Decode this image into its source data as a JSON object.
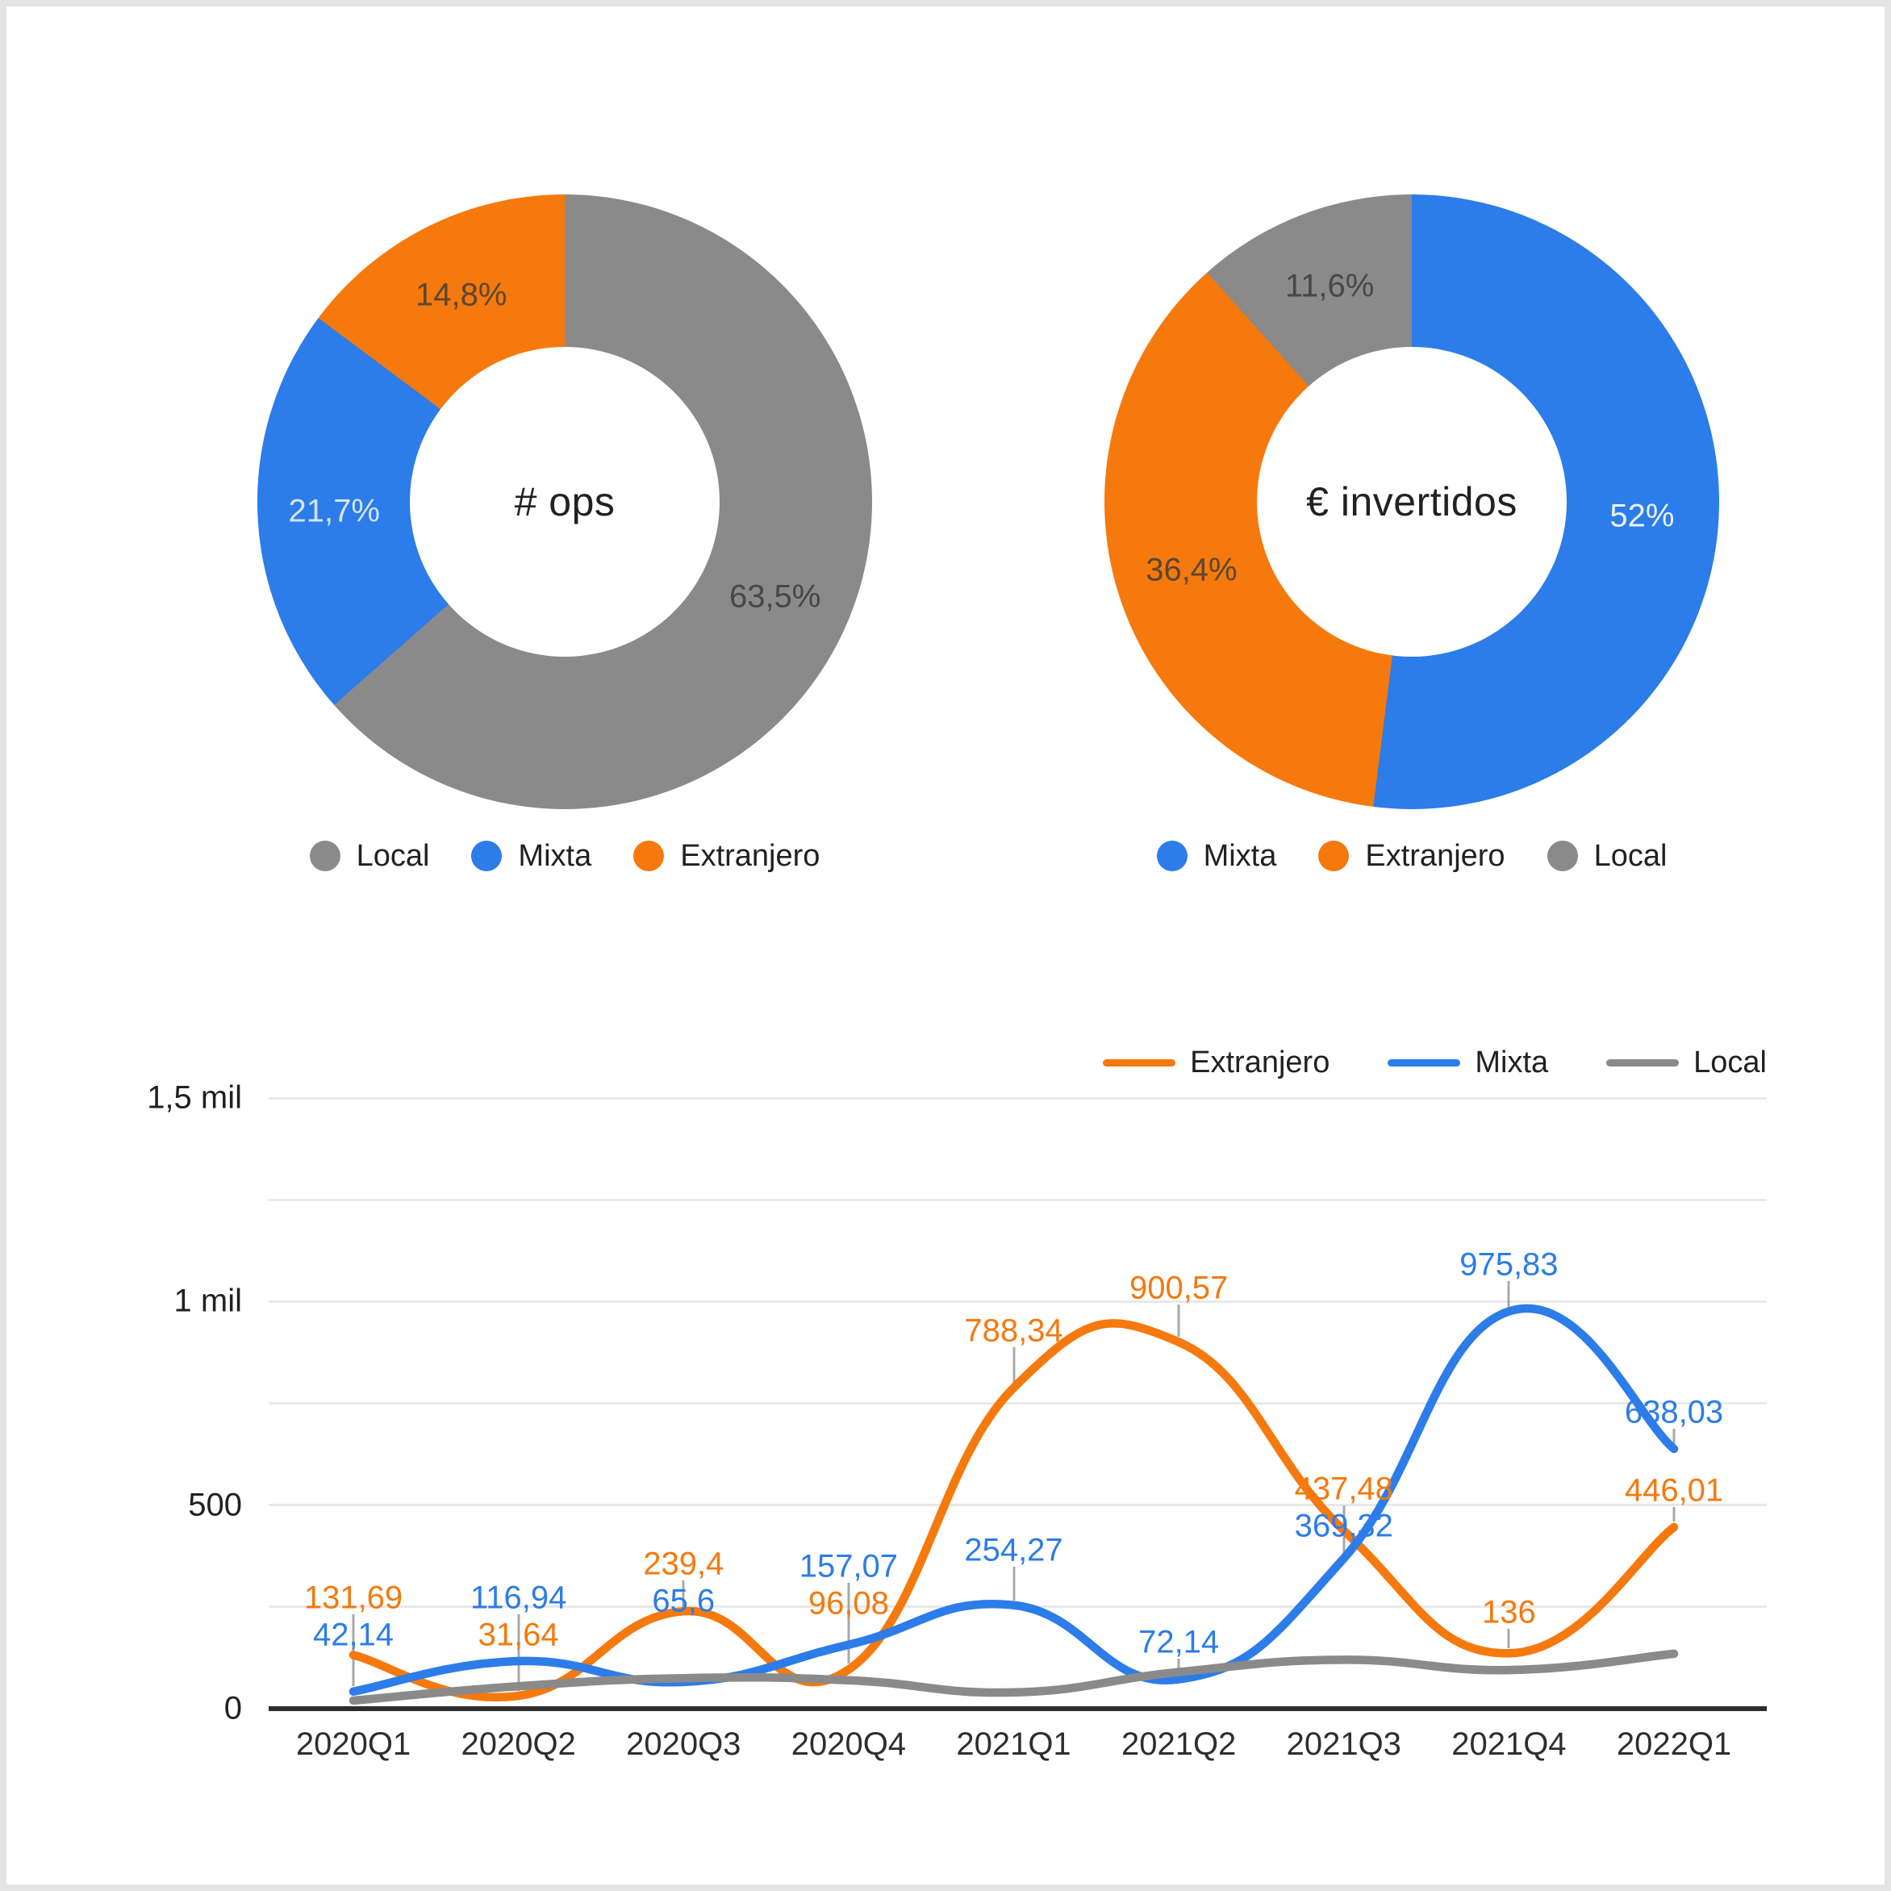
{
  "palette": {
    "Extranjero": "#F5790D",
    "Mixta": "#2C7CE9",
    "Local": "#8A8A8A"
  },
  "chart_data": [
    {
      "type": "pie",
      "donut": true,
      "title": "# ops",
      "labels": [
        "Local",
        "Mixta",
        "Extranjero"
      ],
      "values": [
        63.5,
        21.7,
        14.8
      ],
      "value_labels": [
        "63,5%",
        "21,7%",
        "14,8%"
      ],
      "slice_colors": [
        "#8A8A8A",
        "#2C7CE9",
        "#F5790D"
      ],
      "slice_label_colors": [
        "#474747",
        "#D6E4FB",
        "#5A4632"
      ],
      "legend": [
        "Local",
        "Mixta",
        "Extranjero"
      ],
      "legend_position": "bottom"
    },
    {
      "type": "pie",
      "donut": true,
      "title": "€ invertidos",
      "labels": [
        "Mixta",
        "Extranjero",
        "Local"
      ],
      "values": [
        52,
        36.4,
        11.6
      ],
      "value_labels": [
        "52%",
        "36,4%",
        "11,6%"
      ],
      "slice_colors": [
        "#2C7CE9",
        "#F5790D",
        "#8A8A8A"
      ],
      "slice_label_colors": [
        "#EDF3FE",
        "#5A4632",
        "#474747"
      ],
      "legend": [
        "Mixta",
        "Extranjero",
        "Local"
      ],
      "legend_position": "bottom"
    },
    {
      "type": "line",
      "smooth": true,
      "grid": true,
      "x": [
        "2020Q1",
        "2020Q2",
        "2020Q3",
        "2020Q4",
        "2021Q1",
        "2021Q2",
        "2021Q3",
        "2021Q4",
        "2022Q1"
      ],
      "series": [
        {
          "name": "Extranjero",
          "color": "#F5790D",
          "values": [
            131.69,
            31.64,
            239.4,
            96.08,
            788.34,
            900.57,
            437.48,
            136,
            446.01
          ],
          "point_labels": [
            "131,69",
            "31,64",
            "239,4",
            "96,08",
            "788,34",
            "900,57",
            "437,48",
            "136",
            "446,01"
          ]
        },
        {
          "name": "Mixta",
          "color": "#2C7CE9",
          "values": [
            42.14,
            116.94,
            65.6,
            157.07,
            254.27,
            72.14,
            369.32,
            975.83,
            638.03
          ],
          "point_labels": [
            "42,14",
            "116,94",
            "65,6",
            "157,07",
            "254,27",
            "72,14",
            "369,32",
            "975,83",
            "638,03"
          ]
        },
        {
          "name": "Local",
          "color": "#8A8A8A",
          "values_estimated": true,
          "values": [
            20,
            55,
            75,
            70,
            40,
            90,
            120,
            95,
            135
          ],
          "point_labels": null
        }
      ],
      "y_ticks": [
        {
          "label": "1,5 mil",
          "value": 1500
        },
        {
          "label": "1 mil",
          "value": 1000
        },
        {
          "label": "500",
          "value": 500
        },
        {
          "label": "0",
          "value": 0
        }
      ],
      "ylim": [
        0,
        1500
      ],
      "legend": [
        "Extranjero",
        "Mixta",
        "Local"
      ],
      "legend_position": "top-right"
    }
  ]
}
